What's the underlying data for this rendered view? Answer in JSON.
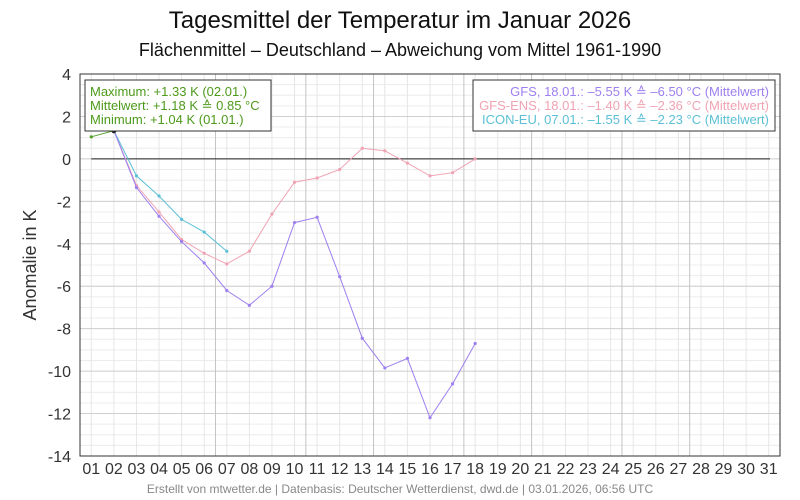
{
  "chart_data": {
    "type": "line",
    "title": "Tagesmittel der Temperatur im Januar 2026",
    "subtitle": "Flächenmittel – Deutschland – Abweichung vom Mittel 1961-1990",
    "xlabel": "",
    "ylabel": "Anomalie in K",
    "ylim": [
      -14,
      4
    ],
    "yticks": [
      "4",
      "2",
      "0",
      "-2",
      "-4",
      "-6",
      "-8",
      "-10",
      "-12",
      "-14"
    ],
    "categories": [
      "01",
      "02",
      "03",
      "04",
      "05",
      "06",
      "07",
      "08",
      "09",
      "10",
      "11",
      "12",
      "13",
      "14",
      "15",
      "16",
      "17",
      "18",
      "19",
      "20",
      "21",
      "22",
      "23",
      "24",
      "25",
      "26",
      "27",
      "28",
      "29",
      "30",
      "31"
    ],
    "grid": true,
    "series": [
      {
        "key": "observed",
        "color": "#55a02a",
        "x": [
          1,
          2
        ],
        "values": [
          1.04,
          1.33
        ]
      },
      {
        "key": "gfs",
        "color": "#9d7ff0",
        "x": [
          2,
          3,
          4,
          5,
          6,
          7,
          8,
          9,
          10,
          11,
          12,
          13,
          14,
          15,
          16,
          17,
          18
        ],
        "values": [
          1.33,
          -1.35,
          -2.7,
          -3.9,
          -4.9,
          -6.2,
          -6.9,
          -6.0,
          -3.0,
          -2.75,
          -5.55,
          -8.45,
          -9.85,
          -9.4,
          -12.2,
          -10.6,
          -8.7
        ]
      },
      {
        "key": "gfs_ens",
        "color": "#f0a3b3",
        "x": [
          2,
          3,
          4,
          5,
          6,
          7,
          8,
          9,
          10,
          11,
          12,
          13,
          14,
          15,
          16,
          17,
          18
        ],
        "values": [
          1.33,
          -1.25,
          -2.5,
          -3.8,
          -4.45,
          -4.95,
          -4.35,
          -2.6,
          -1.1,
          -0.9,
          -0.5,
          0.5,
          0.38,
          -0.2,
          -0.8,
          -0.65,
          0.0
        ]
      },
      {
        "key": "icon_eu",
        "color": "#5bc0d6",
        "x": [
          2,
          3,
          4,
          5,
          6,
          7
        ],
        "values": [
          1.33,
          -0.8,
          -1.75,
          -2.85,
          -3.45,
          -4.35
        ]
      }
    ],
    "stats_box": {
      "color": "#4d9a1a",
      "lines": [
        "Maximum: +1.33 K  (02.01.)",
        "Mittelwert: +1.18 K  ≙  0.85 °C",
        "Minimum:  +1.04 K  (01.01.)"
      ]
    },
    "legend": {
      "position": "top-right",
      "entries": [
        {
          "text": "GFS, 18.01.: –5.55 K  ≙  –6.50 °C (Mittelwert)",
          "color": "#9d7ff0"
        },
        {
          "text": "GFS-ENS, 18.01.: –1.40 K  ≙  –2.36 °C (Mittelwert)",
          "color": "#f0a3b3"
        },
        {
          "text": "ICON-EU, 07.01.: –1.55 K  ≙  –2.23 °C (Mittelwert)",
          "color": "#5bc0d6"
        }
      ]
    },
    "footer": "Erstellt von mtwetter.de | Datenbasis: Deutscher Wetterdienst, dwd.de | 03.01.2026, 06:56 UTC"
  }
}
